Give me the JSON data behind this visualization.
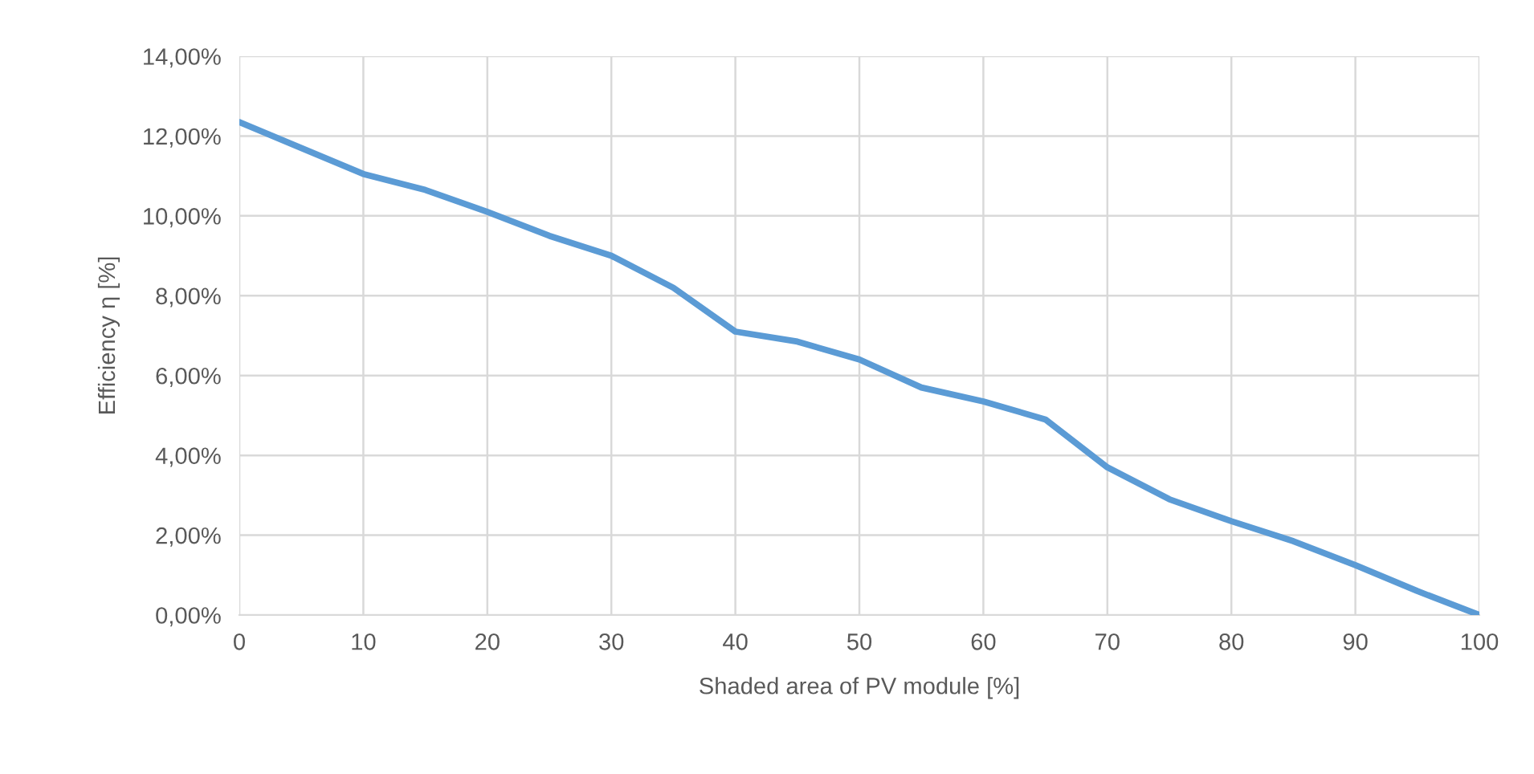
{
  "chart_data": {
    "type": "line",
    "xlabel": "Shaded area of PV module [%]",
    "ylabel": "Efficiency η [%]",
    "x": [
      0,
      5,
      10,
      15,
      20,
      25,
      30,
      35,
      40,
      45,
      50,
      55,
      60,
      65,
      70,
      75,
      80,
      85,
      90,
      95,
      100
    ],
    "series": [
      {
        "color": "#5b9bd5",
        "values": [
          12.35,
          11.7,
          11.05,
          10.65,
          10.1,
          9.5,
          9.0,
          8.2,
          7.1,
          6.85,
          6.4,
          5.7,
          5.35,
          4.9,
          3.7,
          2.9,
          2.35,
          1.85,
          1.25,
          0.6,
          0.0
        ]
      }
    ],
    "xlim": [
      0,
      100
    ],
    "xticks": [
      0,
      10,
      20,
      30,
      40,
      50,
      60,
      70,
      80,
      90,
      100
    ],
    "ylim": [
      0,
      14
    ],
    "yticks": [
      {
        "value": 0,
        "label": "0,00%"
      },
      {
        "value": 2,
        "label": "2,00%"
      },
      {
        "value": 4,
        "label": "4,00%"
      },
      {
        "value": 6,
        "label": "6,00%"
      },
      {
        "value": 8,
        "label": "8,00%"
      },
      {
        "value": 10,
        "label": "10,00%"
      },
      {
        "value": 12,
        "label": "12,00%"
      },
      {
        "value": 14,
        "label": "14,00%"
      }
    ],
    "grid": true,
    "marker": "none",
    "line_style": "solid",
    "legend": false
  }
}
